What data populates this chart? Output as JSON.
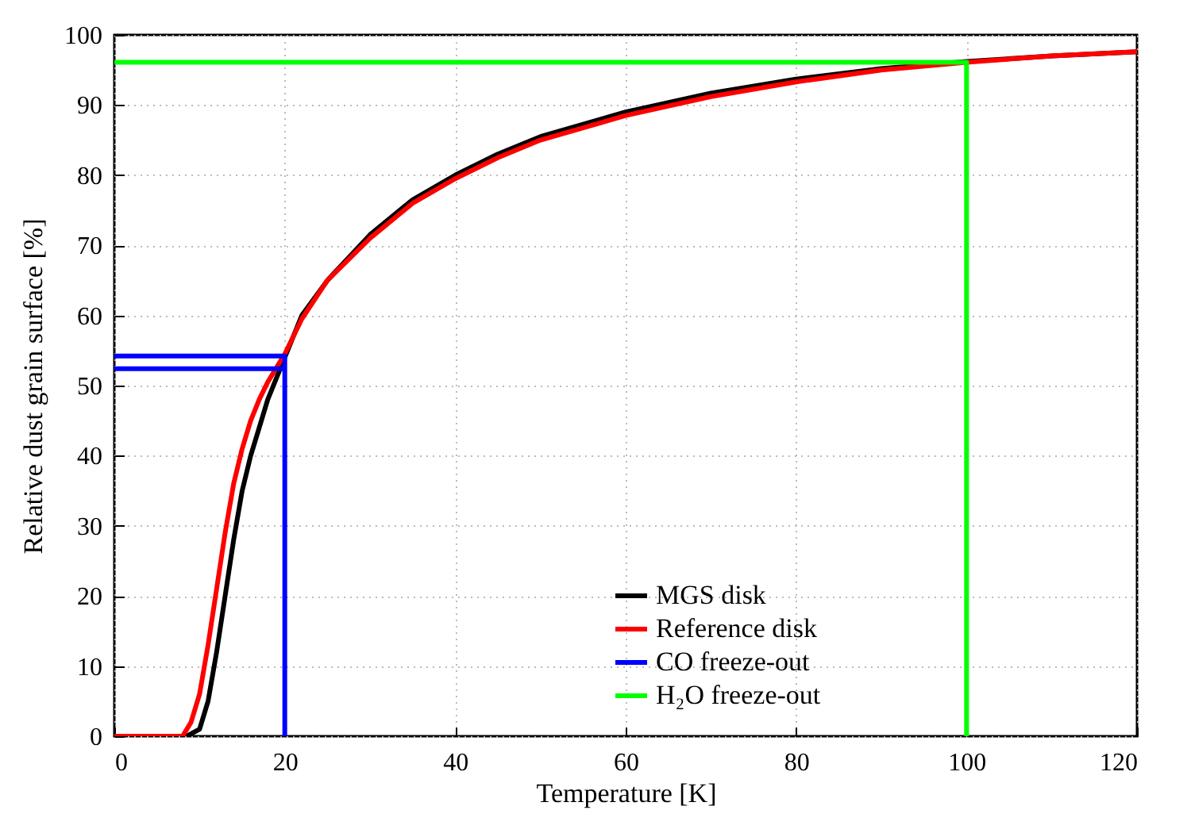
{
  "chart_data": {
    "type": "line",
    "xlabel": "Temperature [K]",
    "ylabel": "Relative dust grain surface [%]",
    "xlim": [
      0,
      120
    ],
    "xticks": [
      0,
      20,
      40,
      60,
      80,
      100,
      120
    ],
    "ylim": [
      0,
      100
    ],
    "yticks": [
      0,
      10,
      20,
      30,
      40,
      50,
      60,
      70,
      80,
      90,
      100
    ],
    "grid": true,
    "legend": "bottom right",
    "line_style": "solid",
    "series": [
      {
        "name": "MGS disk",
        "color": "#000000",
        "x": [
          0,
          8.5,
          10,
          11,
          12,
          13,
          14,
          15,
          16,
          17,
          18,
          19,
          20,
          22,
          25,
          30,
          35,
          40,
          45,
          50,
          60,
          70,
          80,
          90,
          100,
          110,
          120
        ],
        "values": [
          0,
          0,
          1,
          5,
          12,
          20,
          28,
          35,
          40,
          44,
          48,
          51,
          54,
          60,
          65,
          71.5,
          76.5,
          80,
          83,
          85.5,
          89,
          91.7,
          93.7,
          95.2,
          96.2,
          97,
          97.6
        ]
      },
      {
        "name": "Reference disk",
        "color": "#ff0000",
        "x": [
          0,
          8,
          9,
          10,
          11,
          12,
          13,
          14,
          15,
          16,
          17,
          18,
          19,
          20,
          22,
          25,
          30,
          35,
          40,
          45,
          50,
          60,
          70,
          80,
          90,
          100,
          110,
          120
        ],
        "values": [
          0,
          0,
          2,
          6,
          13,
          21,
          29,
          36,
          41,
          45,
          48,
          50.5,
          52.5,
          54.5,
          59.5,
          65,
          71,
          76,
          79.5,
          82.5,
          85,
          88.5,
          91.2,
          93.3,
          95,
          96.1,
          97,
          97.6
        ]
      },
      {
        "name": "CO freeze-out",
        "color": "#0000ff",
        "x": [
          0,
          20,
          20,
          20,
          0
        ],
        "values": [
          54.2,
          54.2,
          0,
          52.4,
          52.4
        ]
      },
      {
        "name": "H₂O freeze-out",
        "color": "#00ff00",
        "x": [
          0,
          100,
          100
        ],
        "values": [
          96.1,
          96.1,
          0
        ]
      }
    ]
  }
}
